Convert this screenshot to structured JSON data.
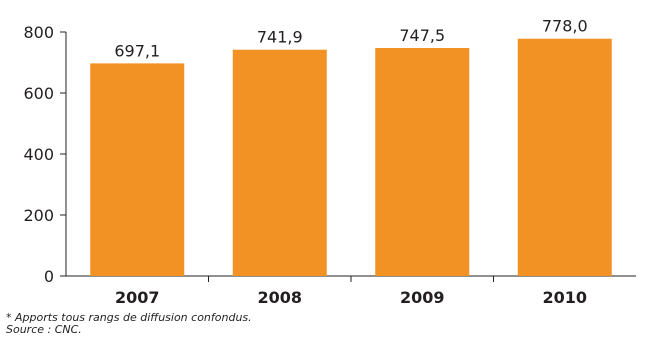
{
  "chart_data": {
    "type": "bar",
    "categories": [
      "2007",
      "2008",
      "2009",
      "2010"
    ],
    "values": [
      697.1,
      741.9,
      747.5,
      778.0
    ],
    "data_labels": [
      "697,1",
      "741,9",
      "747,5",
      "778,0"
    ],
    "ylim": [
      0,
      800
    ],
    "yticks": [
      0,
      200,
      400,
      600,
      800
    ],
    "ytick_labels": [
      "0",
      "200",
      "400",
      "600",
      "800"
    ],
    "bar_color": "#f39224",
    "grid": false,
    "title": "",
    "xlabel": "",
    "ylabel": ""
  },
  "notes": {
    "footnote": "* Apports tous rangs de diffusion confondus.",
    "source": "Source : CNC."
  }
}
